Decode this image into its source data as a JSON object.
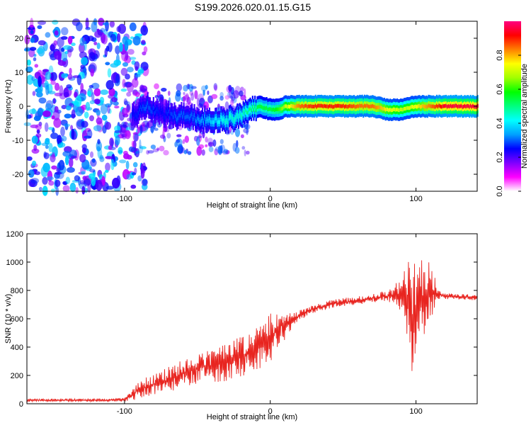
{
  "title": "S199.2026.020.01.15.G15",
  "chart_data": [
    {
      "type": "heatmap",
      "xlabel": "Height of straight line (km)",
      "ylabel": "Frequency (Hz)",
      "xlim": [
        -167,
        142
      ],
      "ylim": [
        -25,
        25
      ],
      "xticks": [
        -100,
        0,
        100
      ],
      "yticks": [
        -20,
        -10,
        0,
        10,
        20
      ],
      "colorbar": {
        "label": "Normalized spectral amplitude",
        "range": [
          0,
          1
        ],
        "ticks": [
          0.0,
          0.2,
          0.4,
          0.6,
          0.8
        ],
        "tick_labels": [
          "0.0",
          "0.2",
          "0.4",
          "0.6",
          "0.8"
        ],
        "colors": [
          "#ffffff",
          "#ff00ff",
          "#8000ff",
          "#0000ff",
          "#00a0ff",
          "#00ffff",
          "#00ff80",
          "#00ff00",
          "#a0ff00",
          "#ffff00",
          "#ff8000",
          "#ff0000",
          "#ff0080"
        ]
      },
      "ridge": {
        "x": [
          -95,
          -85,
          -75,
          -65,
          -55,
          -45,
          -38,
          -30,
          -22,
          -15,
          -8,
          0,
          5,
          10,
          20,
          30,
          40,
          50,
          60,
          70,
          80,
          90,
          100,
          110,
          120,
          142
        ],
        "freq": [
          -3,
          0,
          -2,
          -3,
          -3,
          -4,
          -4.5,
          -4,
          -3,
          -1,
          0,
          -1,
          -1,
          0,
          0,
          0,
          0,
          0,
          0,
          0,
          -1,
          -1,
          0,
          0,
          0,
          0
        ],
        "amplitude": [
          0.25,
          0.3,
          0.25,
          0.3,
          0.3,
          0.35,
          0.4,
          0.45,
          0.45,
          0.5,
          0.55,
          0.55,
          0.6,
          0.7,
          0.85,
          0.9,
          0.9,
          0.9,
          0.85,
          0.85,
          0.75,
          0.7,
          0.75,
          0.85,
          0.95,
          0.95
        ]
      },
      "noise_region": {
        "x_from": -167,
        "x_to": -95
      }
    },
    {
      "type": "line",
      "xlabel": "Height of straight line (km)",
      "ylabel": "SNR (10 * v/v)",
      "xlim": [
        -167,
        142
      ],
      "ylim": [
        0,
        1200
      ],
      "xticks": [
        -100,
        0,
        100
      ],
      "yticks": [
        0,
        200,
        400,
        600,
        800,
        1000,
        1200
      ],
      "series": [
        {
          "name": "SNR",
          "color": "#e8241f",
          "x": [
            -167,
            -150,
            -130,
            -110,
            -100,
            -95,
            -90,
            -80,
            -70,
            -60,
            -50,
            -40,
            -30,
            -20,
            -10,
            -5,
            0,
            5,
            8,
            10,
            12,
            15,
            20,
            25,
            30,
            40,
            50,
            60,
            70,
            80,
            85,
            90,
            95,
            97,
            100,
            105,
            110,
            115,
            120,
            130,
            142
          ],
          "y": [
            25,
            25,
            25,
            25,
            30,
            60,
            100,
            140,
            170,
            210,
            250,
            270,
            290,
            330,
            390,
            410,
            470,
            520,
            560,
            530,
            560,
            580,
            620,
            650,
            670,
            700,
            715,
            730,
            745,
            760,
            770,
            760,
            740,
            600,
            700,
            760,
            780,
            770,
            760,
            755,
            750
          ],
          "spread": [
            10,
            10,
            10,
            10,
            15,
            35,
            70,
            80,
            90,
            100,
            110,
            120,
            130,
            150,
            160,
            170,
            180,
            120,
            100,
            90,
            80,
            60,
            40,
            30,
            30,
            30,
            30,
            30,
            30,
            40,
            60,
            150,
            300,
            400,
            350,
            300,
            250,
            30,
            20,
            20,
            20
          ]
        }
      ],
      "annotations": [
        {
          "x": 10,
          "y": 810,
          "label": ""
        }
      ]
    }
  ]
}
